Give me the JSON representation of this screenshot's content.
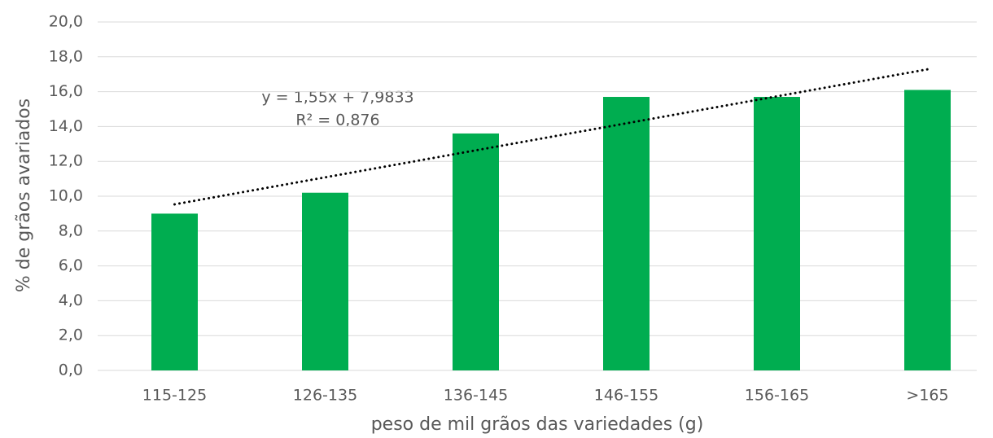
{
  "chart_data": {
    "type": "bar",
    "categories": [
      "115-125",
      "126-135",
      "136-145",
      "146-155",
      "156-165",
      ">165"
    ],
    "values": [
      9.0,
      10.2,
      13.6,
      15.7,
      15.7,
      16.1
    ],
    "color": "#00ad50",
    "ylim": [
      0,
      20
    ],
    "yticks": [
      {
        "value": 0,
        "label": "0,0"
      },
      {
        "value": 2,
        "label": "2,0"
      },
      {
        "value": 4,
        "label": "4,0"
      },
      {
        "value": 6,
        "label": "6,0"
      },
      {
        "value": 8,
        "label": "8,0"
      },
      {
        "value": 10,
        "label": "10,0"
      },
      {
        "value": 12,
        "label": "12,0"
      },
      {
        "value": 14,
        "label": "14,0"
      },
      {
        "value": 16,
        "label": "16,0"
      },
      {
        "value": 18,
        "label": "18,0"
      },
      {
        "value": 20,
        "label": "20,0"
      }
    ],
    "grid": true,
    "xlabel": "peso de mil grãos das variedades (g)",
    "ylabel": "% de grãos avariados",
    "trendline": {
      "slope": 1.55,
      "intercept": 7.9833,
      "equation": "y = 1,55x + 7,9833",
      "r2_label": "R² = 0,876"
    }
  }
}
